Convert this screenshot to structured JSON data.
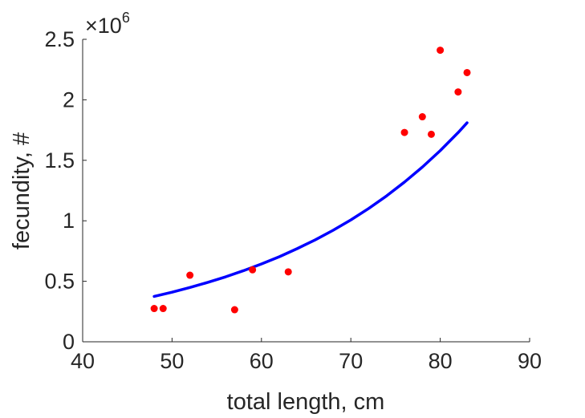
{
  "chart_data": {
    "type": "scatter",
    "xlabel": "total length, cm",
    "ylabel": "fecundity, #",
    "xlim": [
      40,
      90
    ],
    "ylim": [
      0,
      2500000
    ],
    "x_ticks": [
      40,
      50,
      60,
      70,
      80,
      90
    ],
    "y_ticks": [
      0,
      0.5,
      1,
      1.5,
      2,
      2.5
    ],
    "y_tick_labels": [
      "0",
      "0.5",
      "1",
      "1.5",
      "2",
      "2.5"
    ],
    "y_multiplier": {
      "base": "×10",
      "exponent": "6"
    },
    "grid": false,
    "legend": "none",
    "series": [
      {
        "kind": "scatter",
        "color": "#ff0000",
        "x": [
          48,
          49,
          52,
          57,
          59,
          63,
          76,
          78,
          79,
          80,
          82,
          83
        ],
        "y": [
          275000,
          275000,
          550000,
          265000,
          595000,
          578000,
          1730000,
          1860000,
          1715000,
          2410000,
          2065000,
          2225000
        ]
      },
      {
        "kind": "line",
        "color": "#0000ff",
        "x": [
          48,
          50,
          52,
          54,
          56,
          58,
          60,
          62,
          64,
          66,
          68,
          70,
          72,
          74,
          76,
          78,
          80,
          82,
          83
        ],
        "y": [
          375000,
          410000,
          449000,
          491000,
          537000,
          588000,
          643000,
          703000,
          770000,
          842000,
          921000,
          1007000,
          1102000,
          1206000,
          1320000,
          1444000,
          1580000,
          1729000,
          1810000
        ]
      }
    ]
  }
}
